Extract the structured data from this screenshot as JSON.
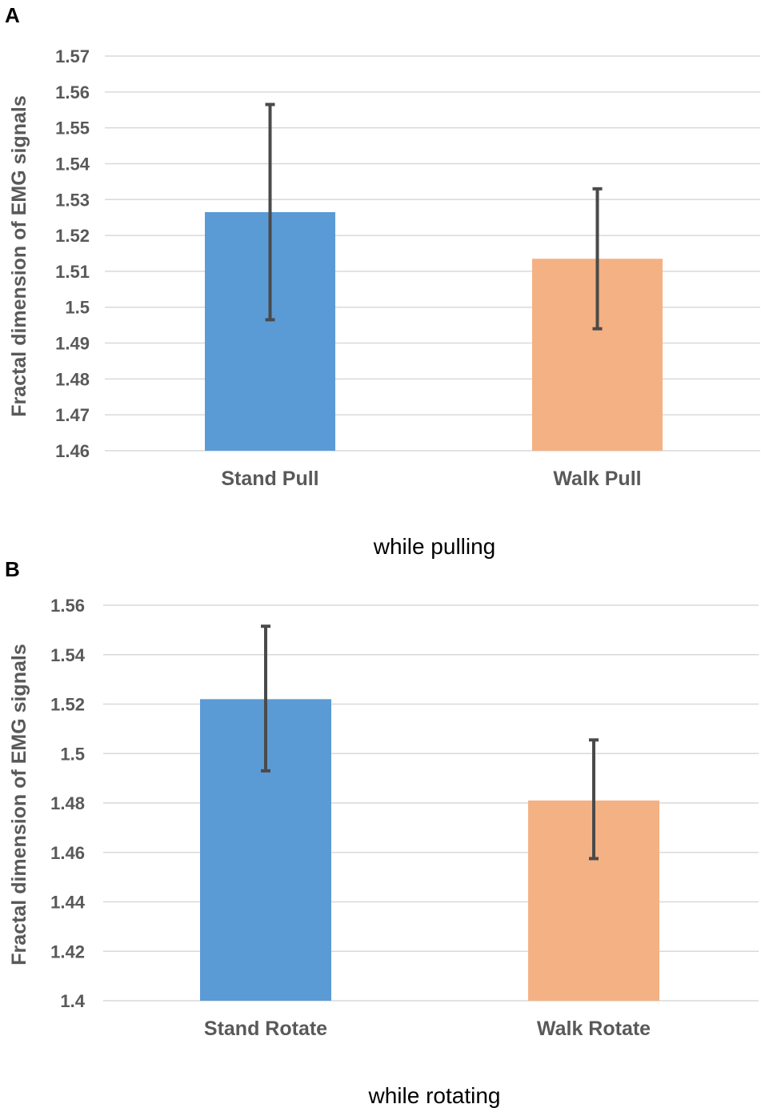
{
  "chart_data": [
    {
      "panel_label": "A",
      "type": "bar",
      "title": "",
      "caption": "while pulling",
      "xlabel": "",
      "ylabel": "Fractal dimension of EMG signals",
      "ylim": [
        1.46,
        1.57
      ],
      "yticks": [
        1.46,
        1.47,
        1.48,
        1.49,
        1.5,
        1.51,
        1.52,
        1.53,
        1.54,
        1.55,
        1.56,
        1.57
      ],
      "ytick_labels": [
        "1.46",
        "1.47",
        "1.48",
        "1.49",
        "1.5",
        "1.51",
        "1.52",
        "1.53",
        "1.54",
        "1.55",
        "1.56",
        "1.57"
      ],
      "grid": true,
      "categories": [
        "Stand Pull",
        "Walk Pull"
      ],
      "values": [
        1.5265,
        1.5135
      ],
      "error_low": [
        1.4965,
        1.494
      ],
      "error_high": [
        1.5565,
        1.533
      ],
      "colors": [
        "#5B9BD5",
        "#F4B183"
      ]
    },
    {
      "panel_label": "B",
      "type": "bar",
      "title": "",
      "caption": "while rotating",
      "xlabel": "",
      "ylabel": "Fractal dimension of EMG signals",
      "ylim": [
        1.4,
        1.56
      ],
      "yticks": [
        1.4,
        1.42,
        1.44,
        1.46,
        1.48,
        1.5,
        1.52,
        1.54,
        1.56
      ],
      "ytick_labels": [
        "1.4",
        "1.42",
        "1.44",
        "1.46",
        "1.48",
        "1.5",
        "1.52",
        "1.54",
        "1.56"
      ],
      "grid": true,
      "categories": [
        "Stand Rotate",
        "Walk Rotate"
      ],
      "values": [
        1.522,
        1.481
      ],
      "error_low": [
        1.493,
        1.4575
      ],
      "error_high": [
        1.5515,
        1.5055
      ],
      "colors": [
        "#5B9BD5",
        "#F4B183"
      ]
    }
  ],
  "colors": {
    "error_bar": "#4a4a4a",
    "gridline": "#d9d9d9",
    "tick_text": "#595959"
  }
}
